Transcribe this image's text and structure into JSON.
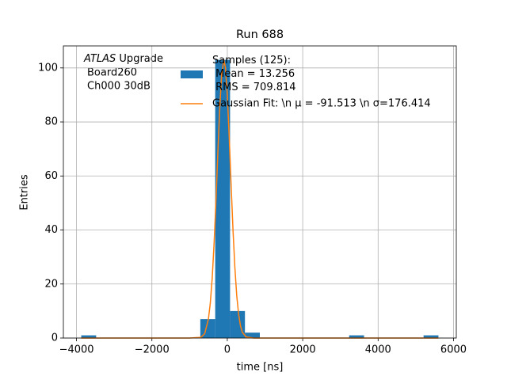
{
  "chart_data": {
    "type": "histogram",
    "title": "Run 688",
    "xlabel": "time [ns]",
    "ylabel": "Entries",
    "annotation_lines": [
      "ATLAS",
      "Upgrade",
      "Board260",
      "Ch000 30dB"
    ],
    "bins": [
      -3874,
      -3479,
      -3084,
      -2690,
      -2295,
      -1900,
      -1505,
      -1111,
      -716,
      -321,
      73,
      468,
      863,
      1258,
      1653,
      2048,
      2442,
      2837,
      3232,
      3627,
      4021,
      4416,
      4811,
      5206,
      5600
    ],
    "series": [
      {
        "name": "Samples (125):\n Mean = 13.256\n RMS = 709.814",
        "color": "#1f77b4",
        "values": [
          1,
          0,
          0,
          0,
          0,
          0,
          0,
          0,
          7,
          103,
          10,
          2,
          0,
          0,
          0,
          0,
          0,
          0,
          1,
          0,
          0,
          0,
          0,
          1
        ]
      },
      {
        "name": "Gaussian Fit: \\n μ = -91.513 \\n σ=176.414",
        "color": "#ff7f0e",
        "kind": "line",
        "x": [
          -3874,
          -1000,
          -700,
          -600,
          -500,
          -450,
          -400,
          -350,
          -300,
          -250,
          -200,
          -150,
          -91.5,
          -50,
          0,
          50,
          100,
          150,
          200,
          250,
          300,
          350,
          400,
          500,
          700,
          5600
        ],
        "values": [
          0,
          0,
          0.27,
          1.6,
          7.1,
          13.1,
          22.3,
          35.2,
          51.2,
          68.8,
          85.3,
          97.5,
          103,
          100.2,
          90.0,
          74.7,
          57.1,
          40.4,
          26.3,
          15.8,
          8.8,
          4.5,
          2.1,
          0.4,
          0,
          0
        ]
      }
    ],
    "xlim": [
      -4348,
      6074
    ],
    "ylim": [
      0,
      108.15
    ],
    "xticks": [
      {
        "value": -4000,
        "label": "−4000"
      },
      {
        "value": -2000,
        "label": "−2000"
      },
      0,
      2000,
      4000,
      6000
    ],
    "yticks": [
      0,
      20,
      40,
      60,
      80,
      100
    ],
    "grid": true
  }
}
